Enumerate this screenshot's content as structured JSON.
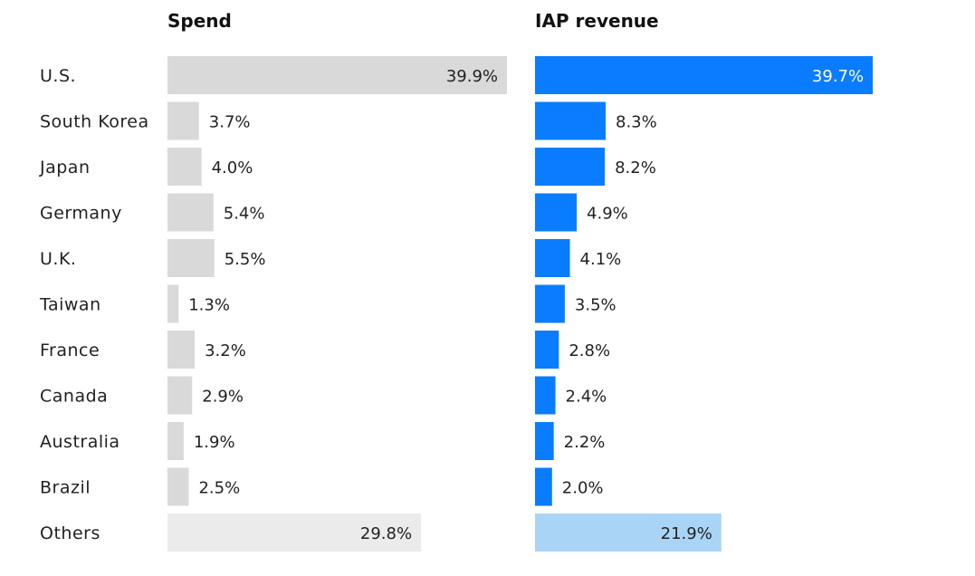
{
  "chart_data": {
    "type": "bar",
    "orientation": "horizontal",
    "categories": [
      "U.S.",
      "South Korea",
      "Japan",
      "Germany",
      "U.K.",
      "Taiwan",
      "France",
      "Canada",
      "Australia",
      "Brazil",
      "Others"
    ],
    "panels": [
      {
        "name": "Spend",
        "title": "Spend",
        "values": [
          39.9,
          3.7,
          4.0,
          5.4,
          5.5,
          1.3,
          3.2,
          2.9,
          1.9,
          2.5,
          29.8
        ],
        "labels": [
          "39.9%",
          "3.7%",
          "4.0%",
          "5.4%",
          "5.5%",
          "1.3%",
          "3.2%",
          "2.9%",
          "1.9%",
          "2.5%",
          "29.8%"
        ],
        "color": "#d9d9d9",
        "others_color": "#ebebec",
        "label_color": "#222222"
      },
      {
        "name": "IAP revenue",
        "title": "IAP revenue",
        "values": [
          39.7,
          8.3,
          8.2,
          4.9,
          4.1,
          3.5,
          2.8,
          2.4,
          2.2,
          2.0,
          21.9
        ],
        "labels": [
          "39.7%",
          "8.3%",
          "8.2%",
          "4.9%",
          "4.1%",
          "3.5%",
          "2.8%",
          "2.4%",
          "2.2%",
          "2.0%",
          "21.9%"
        ],
        "color": "#0a7cff",
        "others_color": "#aad4f5",
        "label_color": "#222222",
        "inside_label_color": "#ffffff"
      }
    ],
    "title": "",
    "xlabel": "",
    "ylabel": "",
    "xlim": [
      0,
      39.9
    ],
    "grid": false,
    "legend": "none"
  }
}
